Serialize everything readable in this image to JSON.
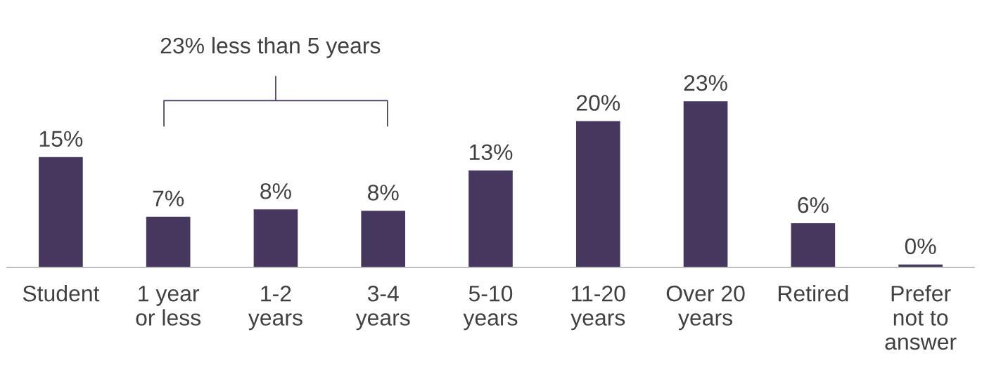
{
  "chart_data": {
    "type": "bar",
    "categories": [
      "Student",
      "1 year\nor less",
      "1-2\nyears",
      "3-4\nyears",
      "5-10\nyears",
      "11-20\nyears",
      "Over 20\nyears",
      "Retired",
      "Prefer\nnot to\nanswer"
    ],
    "values": [
      15,
      6.9,
      7.9,
      7.7,
      13.2,
      19.9,
      22.6,
      6.0,
      0.4
    ],
    "value_labels": [
      "15%",
      "7%",
      "8%",
      "8%",
      "13%",
      "20%",
      "23%",
      "6%",
      "0%"
    ],
    "color": "#45375e",
    "annotations": [
      "23% less than 5 years"
    ],
    "grid": false,
    "legend": false
  }
}
